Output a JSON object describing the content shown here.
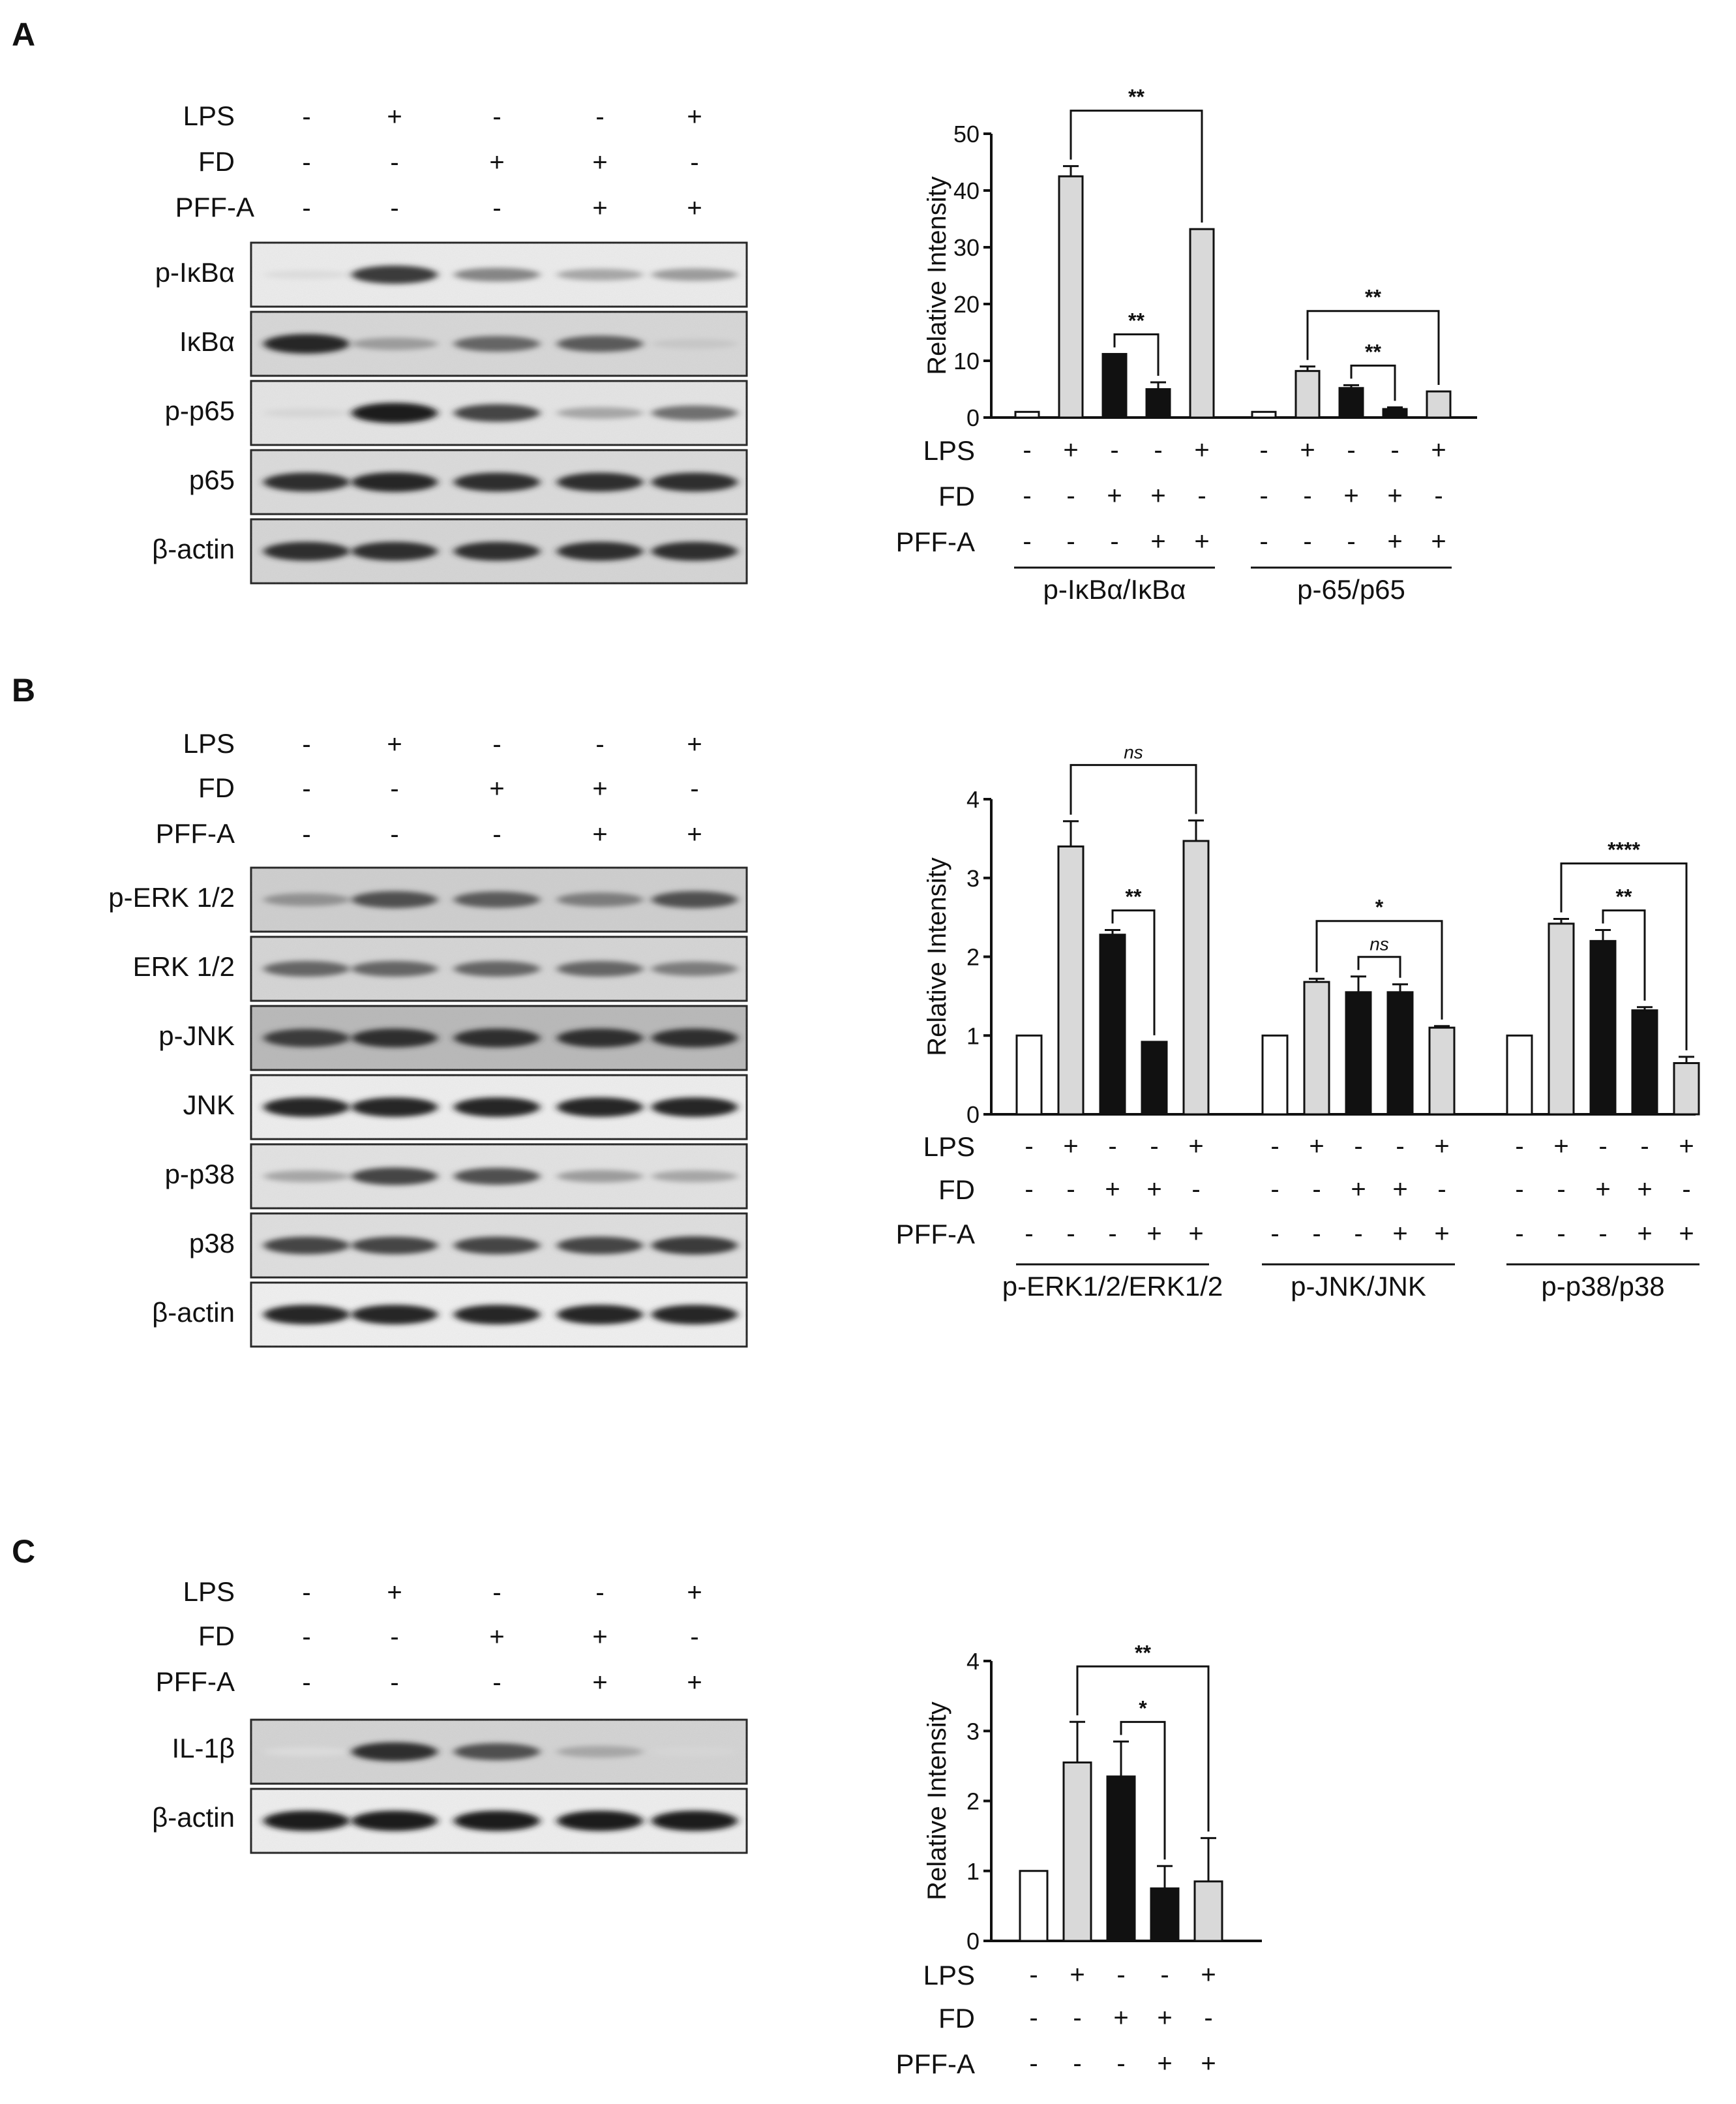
{
  "panels": [
    {
      "letter": "A",
      "treatment_rows": [
        {
          "label": "LPS",
          "signs": [
            "-",
            "+",
            "-",
            "-",
            "+"
          ]
        },
        {
          "label": "FD",
          "signs": [
            "-",
            "-",
            "+",
            "+",
            "-"
          ]
        },
        {
          "label": "PFF-A",
          "signs": [
            "-",
            "-",
            "-",
            "+",
            "+"
          ]
        }
      ],
      "blots": [
        "p-IκBα",
        "IκBα",
        "p-p65",
        "p65",
        "β-actin"
      ]
    },
    {
      "letter": "B",
      "treatment_rows": [
        {
          "label": "LPS",
          "signs": [
            "-",
            "+",
            "-",
            "-",
            "+"
          ]
        },
        {
          "label": "FD",
          "signs": [
            "-",
            "-",
            "+",
            "+",
            "-"
          ]
        },
        {
          "label": "PFF-A",
          "signs": [
            "-",
            "-",
            "-",
            "+",
            "+"
          ]
        }
      ],
      "blots": [
        "p-ERK 1/2",
        "ERK 1/2",
        "p-JNK",
        "JNK",
        "p-p38",
        "p38",
        "β-actin"
      ]
    },
    {
      "letter": "C",
      "treatment_rows": [
        {
          "label": "LPS",
          "signs": [
            "-",
            "+",
            "-",
            "-",
            "+"
          ]
        },
        {
          "label": "FD",
          "signs": [
            "-",
            "-",
            "+",
            "+",
            "-"
          ]
        },
        {
          "label": "PFF-A",
          "signs": [
            "-",
            "-",
            "-",
            "+",
            "+"
          ]
        }
      ],
      "blots": [
        "IL-1β",
        "β-actin"
      ]
    }
  ],
  "colors": {
    "white_bar": "#ffffff",
    "gray_bar": "#d9d9d9",
    "black_bar": "#111111"
  },
  "chart_data": [
    {
      "panel": "A",
      "type": "bar",
      "ylabel": "Relative Intensity",
      "ylim": [
        0,
        50
      ],
      "yticks": [
        0,
        10,
        20,
        30,
        40,
        50
      ],
      "condition_labels": [
        "LPS",
        "FD",
        "PFF-A"
      ],
      "condition_signs": [
        [
          "-",
          "+",
          "-",
          "-",
          "+"
        ],
        [
          "-",
          "-",
          "+",
          "+",
          "-"
        ],
        [
          "-",
          "-",
          "-",
          "+",
          "+"
        ]
      ],
      "groups": [
        {
          "name": "p-IκBα/IκBα",
          "values": [
            1,
            42.5,
            11.2,
            5,
            33.2
          ],
          "errors": [
            0,
            1.8,
            0,
            1.2,
            0
          ],
          "fills": [
            "white",
            "gray",
            "black",
            "black",
            "gray"
          ]
        },
        {
          "name": "p-65/p65",
          "values": [
            1,
            8.2,
            5.2,
            1.5,
            4.6
          ],
          "errors": [
            0,
            0.8,
            0.5,
            0.3,
            0
          ],
          "fills": [
            "white",
            "gray",
            "black",
            "black",
            "gray"
          ]
        }
      ],
      "significance": [
        {
          "group": 0,
          "from": 1,
          "to": 4,
          "label": "**"
        },
        {
          "group": 0,
          "from": 2,
          "to": 3,
          "label": "**"
        },
        {
          "group": 1,
          "from": 1,
          "to": 4,
          "label": "**"
        },
        {
          "group": 1,
          "from": 2,
          "to": 3,
          "label": "**"
        }
      ]
    },
    {
      "panel": "B",
      "type": "bar",
      "ylabel": "Relative Intensity",
      "ylim": [
        0,
        4
      ],
      "yticks": [
        0,
        1,
        2,
        3,
        4
      ],
      "condition_labels": [
        "LPS",
        "FD",
        "PFF-A"
      ],
      "condition_signs": [
        [
          "-",
          "+",
          "-",
          "-",
          "+"
        ],
        [
          "-",
          "-",
          "+",
          "+",
          "-"
        ],
        [
          "-",
          "-",
          "-",
          "+",
          "+"
        ]
      ],
      "groups": [
        {
          "name": "p-ERK1/2/ERK1/2",
          "values": [
            1,
            3.4,
            2.28,
            0.92,
            3.47
          ],
          "errors": [
            0,
            0.32,
            0.06,
            0,
            0.26
          ],
          "fills": [
            "white",
            "gray",
            "black",
            "black",
            "gray"
          ]
        },
        {
          "name": "p-JNK/JNK",
          "values": [
            1,
            1.68,
            1.55,
            1.55,
            1.1
          ],
          "errors": [
            0,
            0.04,
            0.2,
            0.1,
            0.02
          ],
          "fills": [
            "white",
            "gray",
            "black",
            "black",
            "gray"
          ]
        },
        {
          "name": "p-p38/p38",
          "values": [
            1,
            2.42,
            2.2,
            1.32,
            0.65
          ],
          "errors": [
            0,
            0.06,
            0.14,
            0.04,
            0.08
          ],
          "fills": [
            "white",
            "gray",
            "black",
            "black",
            "gray"
          ]
        }
      ],
      "significance": [
        {
          "group": 0,
          "from": 1,
          "to": 4,
          "label": "ns"
        },
        {
          "group": 0,
          "from": 2,
          "to": 3,
          "label": "**"
        },
        {
          "group": 1,
          "from": 1,
          "to": 4,
          "label": "*"
        },
        {
          "group": 1,
          "from": 2,
          "to": 3,
          "label": "ns"
        },
        {
          "group": 2,
          "from": 1,
          "to": 4,
          "label": "****"
        },
        {
          "group": 2,
          "from": 2,
          "to": 3,
          "label": "**"
        }
      ]
    },
    {
      "panel": "C",
      "type": "bar",
      "ylabel": "Relative Intensity",
      "ylim": [
        0,
        4
      ],
      "yticks": [
        0,
        1,
        2,
        3,
        4
      ],
      "condition_labels": [
        "LPS",
        "FD",
        "PFF-A"
      ],
      "condition_signs": [
        [
          "-",
          "+",
          "-",
          "-",
          "+"
        ],
        [
          "-",
          "-",
          "+",
          "+",
          "-"
        ],
        [
          "-",
          "-",
          "-",
          "+",
          "+"
        ]
      ],
      "groups": [
        {
          "name": "",
          "values": [
            1,
            2.55,
            2.35,
            0.75,
            0.85
          ],
          "errors": [
            0,
            0.58,
            0.5,
            0.32,
            0.62
          ],
          "fills": [
            "white",
            "gray",
            "black",
            "black",
            "gray"
          ]
        }
      ],
      "significance": [
        {
          "group": 0,
          "from": 1,
          "to": 4,
          "label": "**"
        },
        {
          "group": 0,
          "from": 2,
          "to": 3,
          "label": "*"
        }
      ]
    }
  ]
}
